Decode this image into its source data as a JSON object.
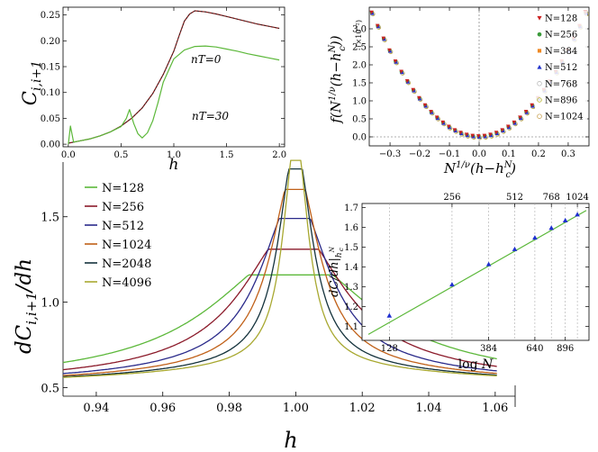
{
  "chart_data": [
    {
      "id": "tl",
      "type": "line",
      "xlabel": "h",
      "ylabel": "C_{i,i+1}",
      "xlim": [
        -0.05,
        2.05
      ],
      "ylim": [
        -0.005,
        0.265
      ],
      "xticks": [
        0.0,
        0.5,
        1.0,
        1.5,
        2.0
      ],
      "xtick_labels": [
        "0.0",
        "0.5",
        "1.0",
        "1.5",
        "2.0"
      ],
      "yticks": [
        0.0,
        0.05,
        0.1,
        0.15,
        0.2,
        0.25
      ],
      "ytick_labels": [
        "0.00",
        "0.05",
        "0.10",
        "0.15",
        "0.20",
        "0.25"
      ],
      "annotations": [
        "nT=0",
        "nT=30"
      ],
      "series": [
        {
          "label": "nT=0",
          "color": "#8b1a1a",
          "dashed_overlay": true,
          "x": [
            0,
            0.1,
            0.2,
            0.3,
            0.4,
            0.5,
            0.6,
            0.7,
            0.8,
            0.9,
            1.0,
            1.05,
            1.1,
            1.15,
            1.2,
            1.3,
            1.4,
            1.5,
            1.6,
            1.7,
            1.8,
            1.9,
            2.0
          ],
          "y": [
            0.002,
            0.006,
            0.01,
            0.016,
            0.024,
            0.035,
            0.05,
            0.07,
            0.098,
            0.135,
            0.18,
            0.21,
            0.238,
            0.252,
            0.258,
            0.256,
            0.252,
            0.247,
            0.242,
            0.237,
            0.232,
            0.228,
            0.224
          ]
        },
        {
          "label": "nT=30",
          "color": "#5cb83a",
          "x": [
            0,
            0.02,
            0.05,
            0.1,
            0.2,
            0.3,
            0.4,
            0.5,
            0.55,
            0.58,
            0.62,
            0.66,
            0.7,
            0.75,
            0.8,
            0.85,
            0.9,
            1.0,
            1.1,
            1.2,
            1.3,
            1.4,
            1.5,
            1.6,
            1.7,
            1.8,
            1.9,
            2.0
          ],
          "y": [
            0.0,
            0.035,
            0.004,
            0.006,
            0.01,
            0.016,
            0.024,
            0.034,
            0.05,
            0.067,
            0.04,
            0.02,
            0.012,
            0.022,
            0.045,
            0.08,
            0.12,
            0.165,
            0.182,
            0.189,
            0.19,
            0.188,
            0.184,
            0.18,
            0.175,
            0.171,
            0.167,
            0.163
          ]
        }
      ]
    },
    {
      "id": "tr",
      "type": "scatter",
      "xlabel": "N^{1/ν}(h−h_c^N)",
      "ylabel": "f(N^{1/ν}(h−h_c^N))",
      "yunit": "(×10⁻²)",
      "xlim": [
        -0.37,
        0.37
      ],
      "ylim": [
        -0.25,
        3.6
      ],
      "xticks": [
        -0.3,
        -0.2,
        -0.1,
        0.0,
        0.1,
        0.2,
        0.3
      ],
      "xtick_labels": [
        "−0.3",
        "−0.2",
        "−0.1",
        "0.0",
        "0.1",
        "0.2",
        "0.3"
      ],
      "yticks": [
        0.0,
        0.5,
        1.0,
        1.5,
        2.0,
        2.5,
        3.0
      ],
      "ytick_labels": [
        "0.0",
        "0.5",
        "1.0",
        "1.5",
        "2.0",
        "2.5",
        "3.0"
      ],
      "legend_placement": "right",
      "legend": [
        {
          "label": "N=128",
          "marker": "tri-down",
          "color": "#cc2222"
        },
        {
          "label": "N=256",
          "marker": "circle",
          "color": "#3a9a3a"
        },
        {
          "label": "N=384",
          "marker": "square",
          "color": "#ee8822"
        },
        {
          "label": "N=512",
          "marker": "tri-up",
          "color": "#2233cc"
        },
        {
          "label": "N=768",
          "marker": "circle-open",
          "color": "#bbbbbb"
        },
        {
          "label": "N=896",
          "marker": "circle-open",
          "color": "#b8b830"
        },
        {
          "label": "N=1024",
          "marker": "circle-open",
          "color": "#c8a050"
        }
      ],
      "curve": "f(x) = 26.5·x² (×10⁻²), sampled at x = −0.36 … 0.36 in steps of 0.02"
    },
    {
      "id": "main",
      "type": "line",
      "xlabel": "h",
      "ylabel": "dC_{i,i+1}/dh",
      "xlim": [
        0.93,
        1.066
      ],
      "ylim": [
        0.45,
        1.82
      ],
      "xticks": [
        0.94,
        0.96,
        0.98,
        1.0,
        1.02,
        1.04,
        1.06
      ],
      "xtick_labels": [
        "0.94",
        "0.96",
        "0.98",
        "1.00",
        "1.02",
        "1.04",
        "1.06"
      ],
      "yticks": [
        0.5,
        1.0,
        1.5
      ],
      "ytick_labels": [
        "0.5",
        "1.0",
        "1.5"
      ],
      "legend_placement": "left",
      "series": [
        {
          "name": "N=128",
          "color": "#5cb83a",
          "peak": 1.16,
          "peak_h": 0.9985,
          "width": 0.028
        },
        {
          "name": "N=256",
          "color": "#8b1a2a",
          "peak": 1.31,
          "peak_h": 0.9993,
          "width": 0.018
        },
        {
          "name": "N=512",
          "color": "#2a2a8a",
          "peak": 1.49,
          "peak_h": 0.9997,
          "width": 0.012
        },
        {
          "name": "N=1024",
          "color": "#c06018",
          "peak": 1.66,
          "peak_h": 0.9998,
          "width": 0.0085
        },
        {
          "name": "N=2048",
          "color": "#14323c",
          "peak": 1.78,
          "peak_h": 0.9999,
          "width": 0.006
        },
        {
          "name": "N=4096",
          "color": "#a8a830",
          "peak": 1.83,
          "peak_h": 1.0,
          "width": 0.0045
        }
      ]
    },
    {
      "id": "inset",
      "type": "scatter",
      "xlabel": "log N",
      "ylabel": "dC/dh|_{h_c^N}",
      "xlim": [
        4.55,
        7.06
      ],
      "ylim": [
        1.03,
        1.72
      ],
      "xticks_log": [
        128,
        384,
        640,
        896
      ],
      "xtick_labels": [
        "128",
        "384",
        "640",
        "896"
      ],
      "top_ticks": [
        256,
        512,
        768,
        1024
      ],
      "top_tick_labels": [
        "256",
        "512",
        "768",
        "1024"
      ],
      "yticks": [
        1.1,
        1.2,
        1.3,
        1.4,
        1.5,
        1.6,
        1.7
      ],
      "ytick_labels": [
        "1.1",
        "1.2",
        "1.3",
        "1.4",
        "1.5",
        "1.6",
        "1.7"
      ],
      "points": {
        "N": [
          128,
          256,
          384,
          512,
          640,
          768,
          896,
          1024
        ],
        "y": [
          1.155,
          1.312,
          1.414,
          1.49,
          1.548,
          1.597,
          1.635,
          1.665
        ]
      },
      "fit": {
        "color": "#5cb83a",
        "x0": 4.62,
        "y0": 1.06,
        "x1": 7.03,
        "y1": 1.685
      }
    }
  ]
}
